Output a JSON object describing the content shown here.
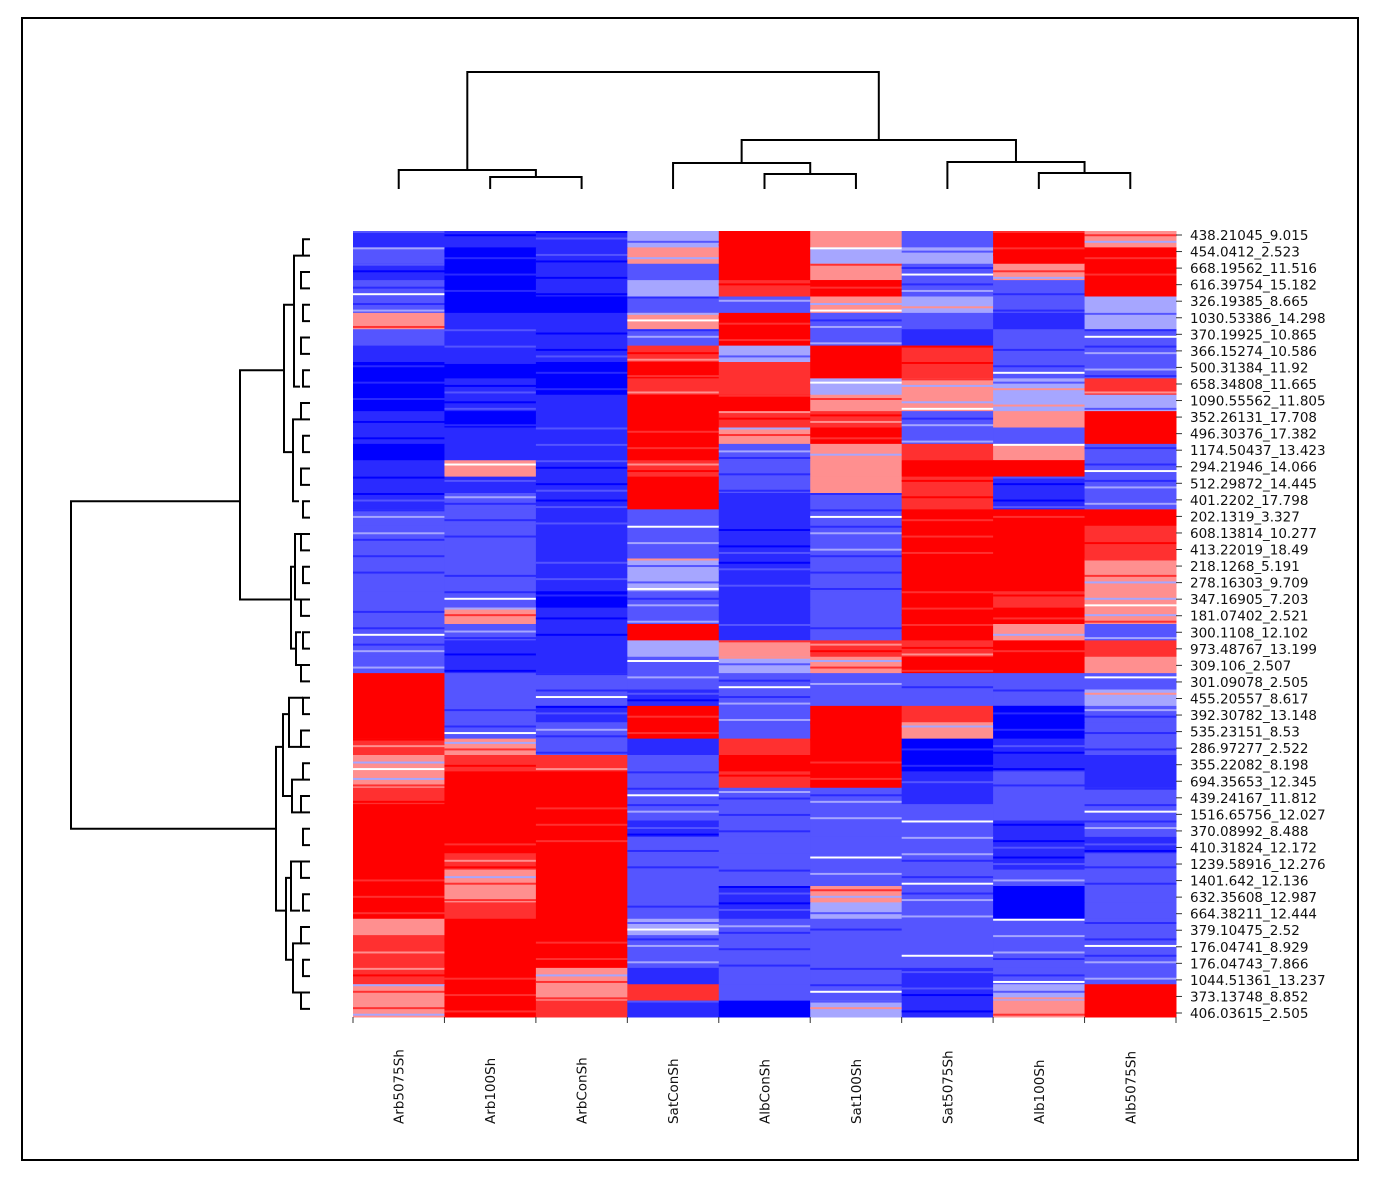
{
  "chart_data": {
    "type": "heatmap",
    "title": "",
    "columns": [
      "Arb5075Sh",
      "Arb100Sh",
      "ArbConSh",
      "SatConSh",
      "AlbConSh",
      "Sat100Sh",
      "Sat5075Sh",
      "Alb100Sh",
      "Alb5075Sh"
    ],
    "rows": [
      "438.21045_9.015",
      "454.0412_2.523",
      "668.19562_11.516",
      "616.39754_15.182",
      "326.19385_8.665",
      "1030.53386_14.298",
      "370.19925_10.865",
      "366.15274_10.586",
      "500.31384_11.92",
      "658.34808_11.665",
      "1090.55562_11.805",
      "352.26131_17.708",
      "496.30376_17.382",
      "1174.50437_13.423",
      "294.21946_14.066",
      "512.29872_14.445",
      "401.2202_17.798",
      "202.1319_3.327",
      "608.13814_10.277",
      "413.22019_18.49",
      "218.1268_5.191",
      "278.16303_9.709",
      "347.16905_7.203",
      "181.07402_2.521",
      "300.1108_12.102",
      "973.48767_13.199",
      "309.106_2.507",
      "301.09078_2.505",
      "455.20557_8.617",
      "392.30782_13.148",
      "535.23151_8.53",
      "286.97277_2.522",
      "355.22082_8.198",
      "694.35653_12.345",
      "439.24167_11.812",
      "1516.65756_12.027",
      "370.08992_8.488",
      "410.31824_12.172",
      "1239.58916_12.276",
      "1401.642_12.136",
      "632.35608_12.987",
      "664.38211_12.444",
      "379.10475_2.52",
      "176.04741_8.929",
      "176.04743_7.866",
      "1044.51361_13.237",
      "373.13748_8.852",
      "406.03615_2.505"
    ],
    "values": [
      [
        -2,
        -2,
        -2,
        0,
        3,
        1,
        -1,
        3,
        1
      ],
      [
        -1,
        -3,
        -2,
        1,
        3,
        0,
        0,
        3,
        3
      ],
      [
        -2,
        -3,
        -2,
        -1,
        3,
        1,
        -1,
        1,
        3
      ],
      [
        -1,
        -3,
        -2,
        0,
        2,
        3,
        -1,
        -1,
        3
      ],
      [
        -1,
        -3,
        -3,
        -1,
        -1,
        1,
        0,
        -1,
        0
      ],
      [
        1,
        -2,
        -2,
        1,
        3,
        -1,
        -1,
        -2,
        0
      ],
      [
        -1,
        -2,
        -2,
        -1,
        3,
        -1,
        -2,
        -1,
        -1
      ],
      [
        -2,
        -2,
        -2,
        2,
        0,
        3,
        2,
        -1,
        -1
      ],
      [
        -3,
        -3,
        -3,
        3,
        2,
        3,
        2,
        -1,
        -1
      ],
      [
        -3,
        -2,
        -3,
        2,
        2,
        0,
        1,
        0,
        2
      ],
      [
        -3,
        -2,
        -2,
        3,
        3,
        1,
        1,
        0,
        0
      ],
      [
        -2,
        -3,
        -2,
        3,
        2,
        2,
        -1,
        1,
        3
      ],
      [
        -2,
        -2,
        -2,
        3,
        1,
        3,
        -1,
        -1,
        3
      ],
      [
        -3,
        -2,
        -2,
        3,
        -1,
        1,
        2,
        1,
        -1
      ],
      [
        -2,
        1,
        -2,
        2,
        -1,
        1,
        3,
        3,
        -1
      ],
      [
        -2,
        -2,
        -2,
        3,
        -1,
        1,
        2,
        -2,
        -1
      ],
      [
        -2,
        -1,
        -2,
        3,
        -2,
        -1,
        2,
        -2,
        -1
      ],
      [
        -1,
        -1,
        -2,
        -1,
        -2,
        -1,
        3,
        3,
        3
      ],
      [
        -1,
        -1,
        -2,
        -1,
        -2,
        -1,
        3,
        3,
        2
      ],
      [
        -1,
        -1,
        -2,
        -1,
        -2,
        -1,
        3,
        3,
        2
      ],
      [
        -1,
        -1,
        -2,
        0,
        -2,
        -1,
        3,
        3,
        1
      ],
      [
        -1,
        -1,
        -2,
        0,
        -2,
        -1,
        3,
        3,
        1
      ],
      [
        -1,
        -1,
        -3,
        -1,
        -2,
        -1,
        3,
        2,
        1
      ],
      [
        -1,
        1,
        -2,
        -1,
        -2,
        -1,
        3,
        3,
        1
      ],
      [
        -1,
        -1,
        -2,
        3,
        -2,
        -1,
        3,
        1,
        -1
      ],
      [
        -1,
        -2,
        -2,
        0,
        1,
        2,
        2,
        3,
        2
      ],
      [
        -1,
        -2,
        -2,
        -1,
        0,
        1,
        3,
        3,
        1
      ],
      [
        3,
        -1,
        -1,
        -1,
        -1,
        -1,
        -1,
        -1,
        -1
      ],
      [
        3,
        -1,
        -1,
        -2,
        -1,
        -1,
        -1,
        -1,
        0
      ],
      [
        3,
        -1,
        -2,
        3,
        -1,
        3,
        2,
        -3,
        -1
      ],
      [
        3,
        -1,
        -1,
        3,
        -1,
        3,
        1,
        -3,
        -1
      ],
      [
        2,
        1,
        -1,
        -2,
        2,
        3,
        -3,
        -2,
        -1
      ],
      [
        1,
        2,
        2,
        -1,
        3,
        3,
        -3,
        -2,
        -2
      ],
      [
        1,
        3,
        3,
        -1,
        2,
        3,
        -2,
        -1,
        -2
      ],
      [
        2,
        3,
        3,
        -1,
        -1,
        -1,
        -2,
        -1,
        -1
      ],
      [
        3,
        3,
        3,
        -1,
        -1,
        -1,
        -1,
        -1,
        -1
      ],
      [
        3,
        3,
        3,
        -2,
        -1,
        -1,
        -1,
        -2,
        -1
      ],
      [
        3,
        3,
        3,
        -1,
        -1,
        -1,
        -1,
        -2,
        -2
      ],
      [
        3,
        2,
        3,
        -1,
        -1,
        -1,
        -1,
        -2,
        -1
      ],
      [
        3,
        1,
        3,
        -1,
        -1,
        -1,
        -1,
        -1,
        -1
      ],
      [
        3,
        1,
        3,
        -1,
        -2,
        1,
        -1,
        -3,
        -1
      ],
      [
        3,
        2,
        3,
        -1,
        -2,
        0,
        -1,
        -3,
        -1
      ],
      [
        1,
        3,
        3,
        0,
        -1,
        -1,
        -1,
        -1,
        -1
      ],
      [
        2,
        3,
        3,
        -1,
        -1,
        -1,
        -1,
        -1,
        -1
      ],
      [
        2,
        3,
        3,
        -1,
        -1,
        -1,
        -1,
        -1,
        -1
      ],
      [
        2,
        3,
        1,
        -2,
        -1,
        -1,
        -2,
        -1,
        -1
      ],
      [
        1,
        3,
        1,
        2,
        -1,
        -1,
        -2,
        0,
        3
      ],
      [
        1,
        3,
        2,
        -2,
        -3,
        0,
        -2,
        1,
        3
      ]
    ],
    "color_scale": {
      "-3": "#0000ff",
      "-2": "#2a2aff",
      "-1": "#5555ff",
      "0": "#a6a6ff",
      "1": "#ff8f8f",
      "2": "#ff3030",
      "3": "#ff0000"
    },
    "column_dendrogram": true,
    "row_dendrogram": true
  }
}
